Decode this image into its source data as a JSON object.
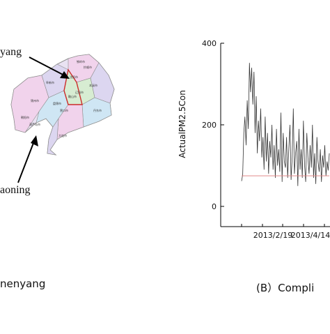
{
  "map": {
    "callout_top": "yang",
    "callout_bottom": "aoning",
    "caption": "nenyang",
    "region_labels": [
      "沈阳市",
      "抄顺市",
      "本溪市",
      "铁岭市",
      "阜新市",
      "锦州市",
      "朝阳市",
      "葫芦岛市",
      "鞍山市",
      "营口市",
      "辽阳市",
      "丹东市",
      "大连市",
      "盘锦市"
    ],
    "colors": {
      "fill_pink": "#f1d3ec",
      "fill_lavender": "#dcd6f0",
      "fill_blue": "#cfe6f4",
      "fill_green": "#d7ecd2",
      "border": "#8e8e8e",
      "highlight": "#cc2a2a"
    }
  },
  "chart_data": {
    "type": "line",
    "ylabel": "ActualPM2.5Con",
    "ylim": [
      0,
      400
    ],
    "yticks": [
      0,
      200,
      400
    ],
    "xtick_labels": [
      "2013/2/19",
      "2013/4/14"
    ],
    "caption": "(B）Compli",
    "series": [
      {
        "type": "line",
        "color": "#333333",
        "values": [
          62,
          78,
          180,
          220,
          150,
          260,
          190,
          352,
          280,
          340,
          250,
          330,
          180,
          270,
          130,
          210,
          160,
          240,
          120,
          170,
          90,
          220,
          110,
          180,
          80,
          160,
          120,
          200,
          90,
          150,
          70,
          190,
          100,
          140,
          85,
          230,
          60,
          180,
          110,
          95,
          170,
          70,
          140,
          200,
          65,
          120,
          240,
          80,
          130,
          160,
          50,
          190,
          90,
          140,
          70,
          210,
          100,
          60,
          180,
          120,
          80,
          150,
          95,
          200,
          70,
          130,
          55,
          170,
          110,
          85,
          140,
          60,
          125,
          95,
          150,
          75,
          110,
          88,
          130
        ]
      },
      {
        "type": "line",
        "color": "#e28a8a",
        "values": [
          75,
          75
        ]
      }
    ],
    "grid": false
  }
}
